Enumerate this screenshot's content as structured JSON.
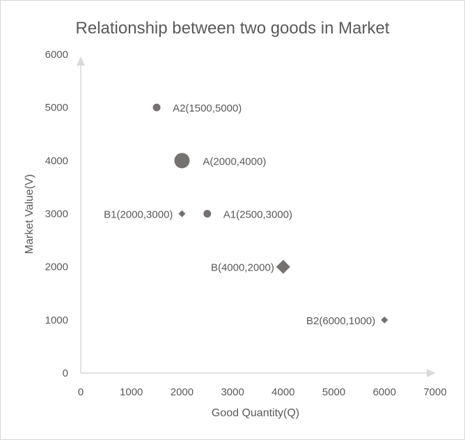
{
  "chart_data": {
    "type": "scatter",
    "title": "Relationship between two goods in Market",
    "xlabel": "Good Quantity(Q)",
    "ylabel": "Market Value(V)",
    "xlim": [
      0,
      7000
    ],
    "ylim": [
      0,
      6000
    ],
    "x_ticks": [
      "0",
      "1000",
      "2000",
      "3000",
      "4000",
      "5000",
      "6000",
      "7000"
    ],
    "y_ticks": [
      "0",
      "1000",
      "2000",
      "3000",
      "4000",
      "5000",
      "6000"
    ],
    "grid": false,
    "legend": "none",
    "marker_color": "#767171",
    "axis_color": "#d9d9d9",
    "points": [
      {
        "label": "A2(1500,5000)",
        "x": 1500,
        "y": 5000,
        "marker": "circle",
        "size": "small",
        "label_side": "right"
      },
      {
        "label": "A(2000,4000)",
        "x": 2000,
        "y": 4000,
        "marker": "circle",
        "size": "large",
        "label_side": "right"
      },
      {
        "label": "B1(2000,3000)",
        "x": 2000,
        "y": 3000,
        "marker": "diamond",
        "size": "small",
        "label_side": "left"
      },
      {
        "label": "A1(2500,3000)",
        "x": 2500,
        "y": 3000,
        "marker": "circle",
        "size": "small",
        "label_side": "right"
      },
      {
        "label": "B(4000,2000)",
        "x": 4000,
        "y": 2000,
        "marker": "diamond",
        "size": "large",
        "label_side": "left"
      },
      {
        "label": "B2(6000,1000)",
        "x": 6000,
        "y": 1000,
        "marker": "diamond",
        "size": "small",
        "label_side": "left"
      }
    ]
  }
}
